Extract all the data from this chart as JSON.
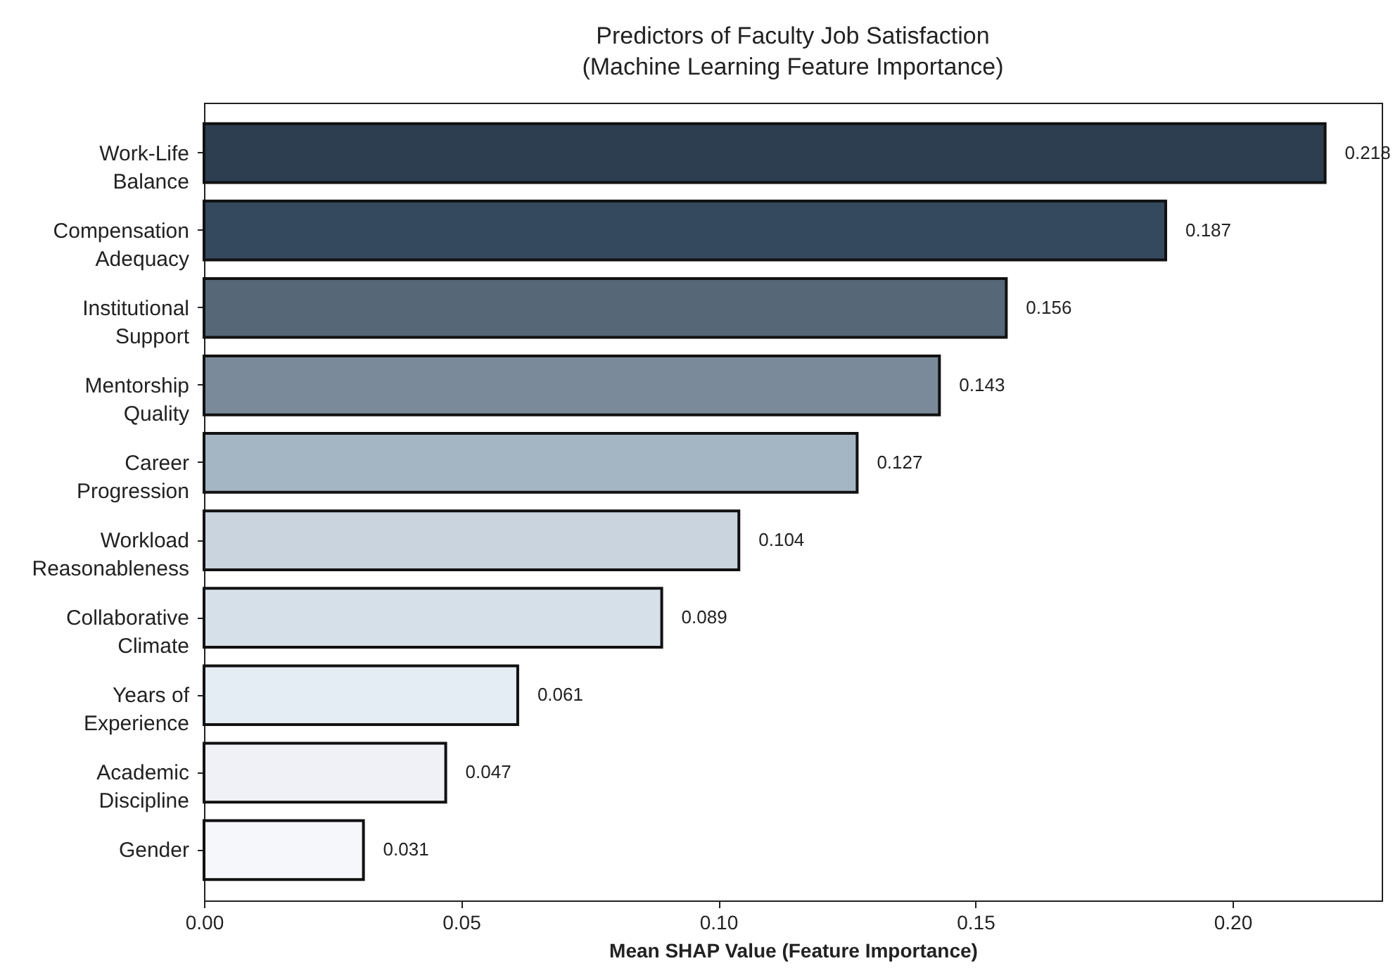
{
  "chart_data": {
    "type": "bar",
    "orientation": "horizontal",
    "title": "Predictors of Faculty Job Satisfaction\n(Machine Learning Feature Importance)",
    "xlabel": "Mean SHAP Value (Feature Importance)",
    "categories": [
      "Work-Life\nBalance",
      "Compensation\nAdequacy",
      "Institutional\nSupport",
      "Mentorship\nQuality",
      "Career\nProgression",
      "Workload\nReasonableness",
      "Collaborative\nClimate",
      "Years of\nExperience",
      "Academic\nDiscipline",
      "Gender"
    ],
    "values": [
      0.218,
      0.187,
      0.156,
      0.143,
      0.127,
      0.104,
      0.089,
      0.061,
      0.047,
      0.031
    ],
    "colors": [
      "#2c3e50",
      "#34495e",
      "#566778",
      "#7a8a9a",
      "#a4b5c3",
      "#c9d4df",
      "#d6e0e8",
      "#e4ecf4",
      "#eff1f7",
      "#f5f7fb"
    ],
    "data_labels": true,
    "xlim": [
      0,
      0.229
    ],
    "xticks": [
      {
        "value": 0,
        "label": "0.00"
      },
      {
        "value": 0.05,
        "label": "0.05"
      },
      {
        "value": 0.1,
        "label": "0.10"
      },
      {
        "value": 0.15,
        "label": "0.15"
      },
      {
        "value": 0.2,
        "label": "0.20"
      }
    ],
    "grid": false
  }
}
